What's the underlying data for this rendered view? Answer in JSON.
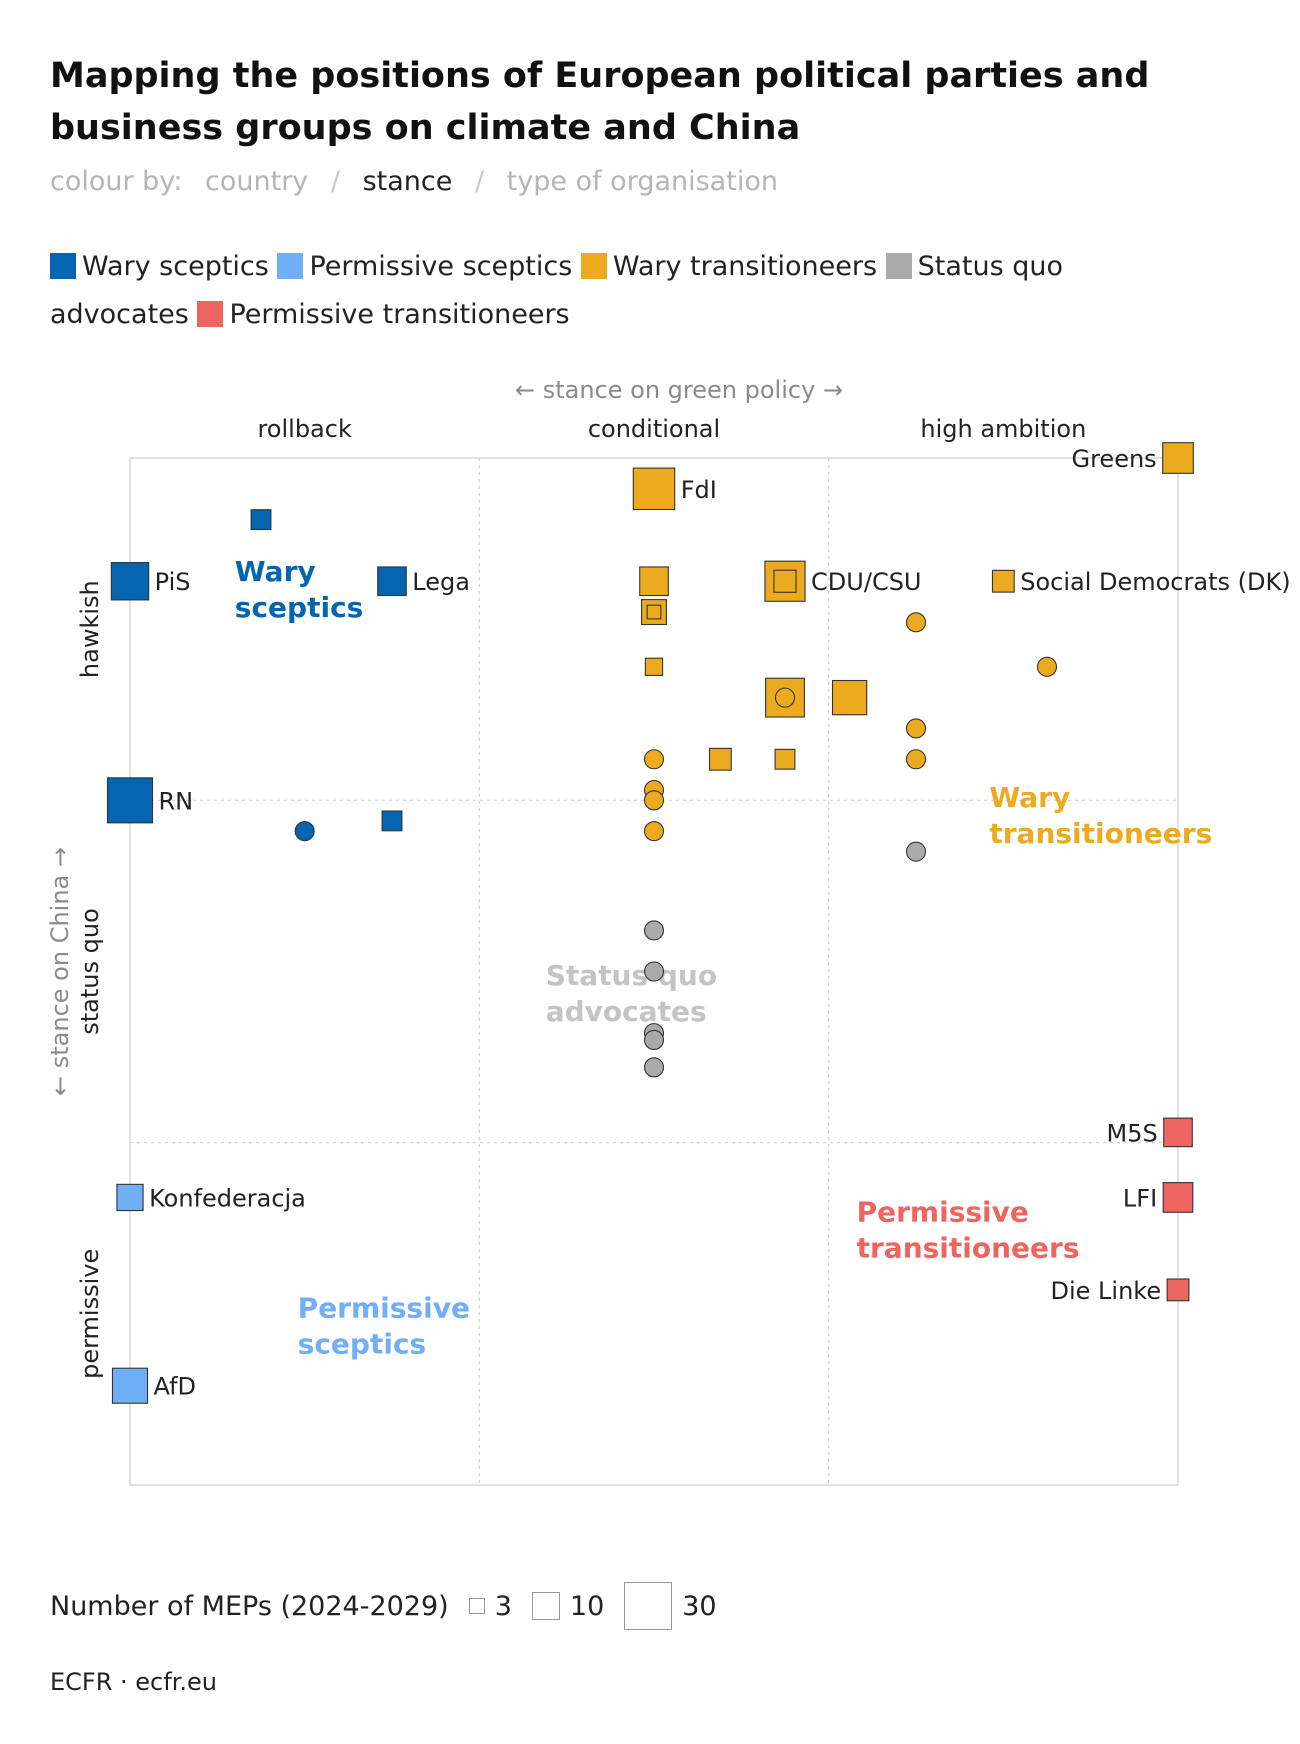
{
  "title": "Mapping the positions of European political parties and business groups on climate and China",
  "colour_by": {
    "label": "colour by:",
    "options": [
      "country",
      "stance",
      "type of organisation"
    ],
    "separator": "/",
    "active": "stance"
  },
  "colors": {
    "wary_sceptics": "#0565b0",
    "permissive_sceptics": "#70aef5",
    "wary_transitioneers": "#ecaa1f",
    "status_quo": "#aaaaaa",
    "permissive_transitioneers": "#ee6461",
    "status_quo_label": "#c4c4c4"
  },
  "legend": [
    {
      "label": "Wary sceptics",
      "color": "#0565b0"
    },
    {
      "label": "Permissive sceptics",
      "color": "#70aef5"
    },
    {
      "label": "Wary transitioneers",
      "color": "#ecaa1f"
    },
    {
      "label": "Status quo advocates",
      "color": "#aaaaaa"
    },
    {
      "label": "Permissive transitioneers",
      "color": "#ee6461"
    }
  ],
  "size_legend": {
    "label": "Number of MEPs (2024-2029)",
    "values": [
      "3",
      "10",
      "30"
    ]
  },
  "source": "ECFR · ecfr.eu",
  "chart_data": {
    "type": "scatter",
    "x_axis_label": "← stance on green policy →",
    "x_categories": [
      "rollback",
      "conditional",
      "high ambition"
    ],
    "y_axis_label": "← stance on China →",
    "y_categories": [
      "hawkish",
      "status quo",
      "permissive"
    ],
    "xlim": [
      0,
      3
    ],
    "ylim": [
      0,
      3
    ],
    "quadrant_labels": [
      {
        "text": "Wary sceptics",
        "x": 0.3,
        "y": 2.64,
        "color": "#0565b0"
      },
      {
        "text": "Wary transitioneers",
        "x": 2.46,
        "y": 1.98,
        "color": "#ecaa1f"
      },
      {
        "text": "Status quo advocates",
        "x": 1.19,
        "y": 1.46,
        "color": "#c4c4c4"
      },
      {
        "text": "Permissive transitioneers",
        "x": 2.08,
        "y": 0.77,
        "color": "#ee6461"
      },
      {
        "text": "Permissive sceptics",
        "x": 0.48,
        "y": 0.49,
        "color": "#70aef5"
      }
    ],
    "points": [
      {
        "label": "Greens",
        "x": 3.0,
        "y": 3.0,
        "shape": "square",
        "meps": 10,
        "stance": "wary_transitioneers",
        "label_pos": "left"
      },
      {
        "label": "FdI",
        "x": 1.5,
        "y": 2.91,
        "shape": "square",
        "meps": 24,
        "stance": "wary_transitioneers",
        "label_pos": "right"
      },
      {
        "label": "",
        "x": 0.375,
        "y": 2.82,
        "shape": "square",
        "meps": 2,
        "stance": "wary_sceptics"
      },
      {
        "label": "PiS",
        "x": 0.0,
        "y": 2.64,
        "shape": "square",
        "meps": 18,
        "stance": "wary_sceptics",
        "label_pos": "right"
      },
      {
        "label": "Lega",
        "x": 0.75,
        "y": 2.64,
        "shape": "square",
        "meps": 8,
        "stance": "wary_sceptics",
        "label_pos": "right"
      },
      {
        "label": "",
        "x": 1.5,
        "y": 2.64,
        "shape": "square",
        "meps": 8,
        "stance": "wary_transitioneers"
      },
      {
        "label": "CDU/CSU",
        "x": 1.875,
        "y": 2.64,
        "shape": "square",
        "meps": 22,
        "stance": "wary_transitioneers",
        "label_pos": "right",
        "inner": true
      },
      {
        "label": "Social Democrats (DK)",
        "x": 2.5,
        "y": 2.64,
        "shape": "square",
        "meps": 3,
        "stance": "wary_transitioneers",
        "label_pos": "right"
      },
      {
        "label": "",
        "x": 1.5,
        "y": 2.55,
        "shape": "square",
        "meps": 5,
        "stance": "wary_transitioneers",
        "inner": true
      },
      {
        "label": "",
        "x": 2.25,
        "y": 2.52,
        "shape": "circle",
        "meps": 1,
        "stance": "wary_transitioneers"
      },
      {
        "label": "",
        "x": 1.5,
        "y": 2.39,
        "shape": "square",
        "meps": 1,
        "stance": "wary_transitioneers"
      },
      {
        "label": "",
        "x": 2.625,
        "y": 2.39,
        "shape": "circle",
        "meps": 1,
        "stance": "wary_transitioneers"
      },
      {
        "label": "",
        "x": 1.875,
        "y": 2.3,
        "shape": "square",
        "meps": 20,
        "stance": "wary_transitioneers",
        "inner_circle": true
      },
      {
        "label": "",
        "x": 2.06,
        "y": 2.3,
        "shape": "square",
        "meps": 14,
        "stance": "wary_transitioneers"
      },
      {
        "label": "",
        "x": 2.25,
        "y": 2.21,
        "shape": "circle",
        "meps": 1,
        "stance": "wary_transitioneers"
      },
      {
        "label": "",
        "x": 1.69,
        "y": 2.12,
        "shape": "square",
        "meps": 3,
        "stance": "wary_transitioneers"
      },
      {
        "label": "",
        "x": 1.875,
        "y": 2.12,
        "shape": "square",
        "meps": 2,
        "stance": "wary_transitioneers"
      },
      {
        "label": "",
        "x": 1.5,
        "y": 2.12,
        "shape": "circle",
        "meps": 1,
        "stance": "wary_transitioneers"
      },
      {
        "label": "",
        "x": 2.25,
        "y": 2.12,
        "shape": "circle",
        "meps": 1,
        "stance": "wary_transitioneers"
      },
      {
        "label": "",
        "x": 1.5,
        "y": 2.03,
        "shape": "circle",
        "meps": 1,
        "stance": "wary_transitioneers"
      },
      {
        "label": "",
        "x": 1.5,
        "y": 2.0,
        "shape": "circle",
        "meps": 1,
        "stance": "wary_transitioneers"
      },
      {
        "label": "RN",
        "x": 0.0,
        "y": 2.0,
        "shape": "square",
        "meps": 30,
        "stance": "wary_sceptics",
        "label_pos": "right"
      },
      {
        "label": "",
        "x": 0.75,
        "y": 1.94,
        "shape": "square",
        "meps": 2,
        "stance": "wary_sceptics"
      },
      {
        "label": "",
        "x": 0.5,
        "y": 1.91,
        "shape": "circle",
        "meps": 1,
        "stance": "wary_sceptics"
      },
      {
        "label": "",
        "x": 1.5,
        "y": 1.91,
        "shape": "circle",
        "meps": 1,
        "stance": "wary_transitioneers"
      },
      {
        "label": "",
        "x": 2.25,
        "y": 1.85,
        "shape": "circle",
        "meps": 1,
        "stance": "status_quo"
      },
      {
        "label": "",
        "x": 1.5,
        "y": 1.62,
        "shape": "circle",
        "meps": 1,
        "stance": "status_quo"
      },
      {
        "label": "",
        "x": 1.5,
        "y": 1.5,
        "shape": "circle",
        "meps": 1,
        "stance": "status_quo"
      },
      {
        "label": "",
        "x": 1.5,
        "y": 1.32,
        "shape": "circle",
        "meps": 1,
        "stance": "status_quo"
      },
      {
        "label": "",
        "x": 1.5,
        "y": 1.3,
        "shape": "circle",
        "meps": 1,
        "stance": "status_quo"
      },
      {
        "label": "",
        "x": 1.5,
        "y": 1.22,
        "shape": "circle",
        "meps": 1,
        "stance": "status_quo"
      },
      {
        "label": "M5S",
        "x": 3.0,
        "y": 1.03,
        "shape": "square",
        "meps": 8,
        "stance": "permissive_transitioneers",
        "label_pos": "left"
      },
      {
        "label": "LFI",
        "x": 3.0,
        "y": 0.84,
        "shape": "square",
        "meps": 9,
        "stance": "permissive_transitioneers",
        "label_pos": "left"
      },
      {
        "label": "Konfederacja",
        "x": 0.0,
        "y": 0.84,
        "shape": "square",
        "meps": 6,
        "stance": "permissive_sceptics",
        "label_pos": "right"
      },
      {
        "label": "Die Linke",
        "x": 3.0,
        "y": 0.57,
        "shape": "square",
        "meps": 3,
        "stance": "permissive_transitioneers",
        "label_pos": "left"
      },
      {
        "label": "AfD",
        "x": 0.0,
        "y": 0.29,
        "shape": "square",
        "meps": 15,
        "stance": "permissive_sceptics",
        "label_pos": "right"
      }
    ]
  }
}
